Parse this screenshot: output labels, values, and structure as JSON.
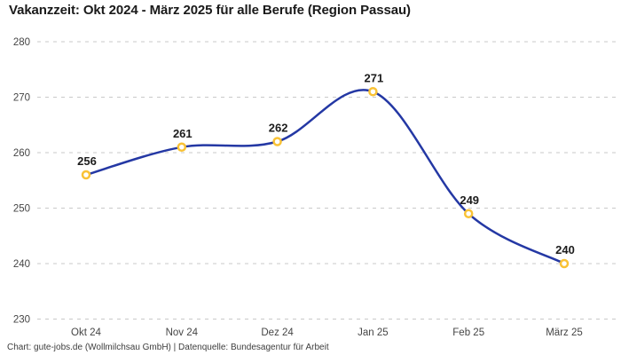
{
  "header": {
    "title": "Vakanzzeit: Okt 2024 - März 2025 für alle Berufe (Region Passau)"
  },
  "footer": {
    "text": "Chart: gute-jobs.de (Wollmilchsau GmbH) | Datenquelle: Bundesagentur für Arbeit"
  },
  "colors": {
    "background": "#ffffff",
    "line": "#2438a4",
    "marker_ring": "#f9c235",
    "marker_fill": "#ffffff",
    "grid": "#c9c9c9",
    "title_text": "#1a1a1a",
    "axis_text": "#454545",
    "value_label_text": "#1c1c1c",
    "footer_text": "#3d3d3d"
  },
  "chart_data": {
    "type": "line",
    "title": "Vakanzzeit: Okt 2024 - März 2025 für alle Berufe (Region Passau)",
    "categories": [
      "Okt 24",
      "Nov 24",
      "Dez 24",
      "Jan 25",
      "Feb 25",
      "März 25"
    ],
    "values": [
      256,
      261,
      262,
      271,
      249,
      240
    ],
    "point_labels": [
      "256",
      "261",
      "262",
      "271",
      "249",
      "240"
    ],
    "xlabel": "",
    "ylabel": "",
    "ylim": [
      230,
      280
    ],
    "yticks": [
      280,
      270,
      260,
      250,
      240,
      230
    ],
    "grid": true,
    "grid_style": "dashed",
    "legend": false,
    "line_interpolation": "smooth",
    "source": "Chart: gute-jobs.de (Wollmilchsau GmbH) | Datenquelle: Bundesagentur für Arbeit"
  }
}
